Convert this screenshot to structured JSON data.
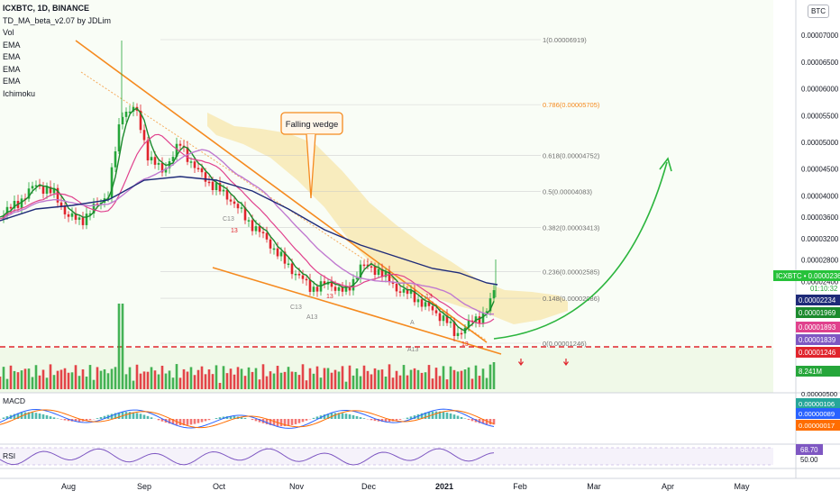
{
  "symbol_title": "ICXBTC, 1D, BINANCE",
  "currency_badge": "BTC",
  "indicators": [
    "TD_MA_beta_v2.07 by JDLim",
    "Vol",
    "EMA",
    "EMA",
    "EMA",
    "EMA",
    "Ichimoku"
  ],
  "annotation": "Falling wedge",
  "countdown": "01:10:32",
  "price_axis_labels": [
    "0.00007000",
    "0.00006500",
    "0.00006000",
    "0.00005500",
    "0.00005000",
    "0.00004500",
    "0.00004000",
    "0.00003600",
    "0.00003200",
    "0.00002800",
    "0.00002400",
    "50"
  ],
  "price_badges": [
    {
      "label": "ICXBTC",
      "value": "0.00002368",
      "color": "#26c23a"
    },
    {
      "label": "",
      "value": "0.00002234",
      "color": "#1e2a78"
    },
    {
      "label": "",
      "value": "0.00001969",
      "color": "#1b8a2d"
    },
    {
      "label": "",
      "value": "0.00001893",
      "color": "#e0418d"
    },
    {
      "label": "",
      "value": "0.00001839",
      "color": "#7e57c2"
    },
    {
      "label": "",
      "value": "0.00001246",
      "color": "#e0242c"
    },
    {
      "label": "",
      "value": "8.241M",
      "color": "#26a63a"
    }
  ],
  "fib_levels": [
    {
      "ratio": "1",
      "value": "0.00006919"
    },
    {
      "ratio": "0.786",
      "value": "0.00005705"
    },
    {
      "ratio": "0.618",
      "value": "0.00004752"
    },
    {
      "ratio": "0.5",
      "value": "0.00004083"
    },
    {
      "ratio": "0.382",
      "value": "0.00003413"
    },
    {
      "ratio": "0.236",
      "value": "0.00002585"
    },
    {
      "ratio": "0.148",
      "value": "0.00002086"
    },
    {
      "ratio": "0",
      "value": "0.00001246"
    }
  ],
  "td_labels": [
    "13",
    "13",
    "13",
    "13",
    "C13",
    "A13",
    "A",
    "C13",
    "A13"
  ],
  "macd": {
    "label": "MACD",
    "axis_top": "0.00000500",
    "values": [
      {
        "value": "0.00000106",
        "color": "#26a69a"
      },
      {
        "value": "0.00000089",
        "color": "#2962ff"
      },
      {
        "value": "0.00000017",
        "color": "#ff6d00"
      }
    ]
  },
  "rsi": {
    "label": "RSI",
    "value": "68.70",
    "level": "50.00",
    "color": "#7e57c2"
  },
  "months": [
    "Aug",
    "Sep",
    "Oct",
    "Nov",
    "Dec",
    "2021",
    "Feb",
    "Mar",
    "Apr",
    "May"
  ],
  "colors": {
    "up": "#26a63a",
    "down": "#e0242c",
    "bg_green": "#eef8e6",
    "wedge": "#f58a1f",
    "ema_green": "#1b8a2d",
    "ema_pink": "#e0418d",
    "ema_purple": "#c07ad0",
    "ema_blue": "#1e2a78",
    "cloud": "#f6d77a",
    "arrow": "#2cb53e"
  }
}
